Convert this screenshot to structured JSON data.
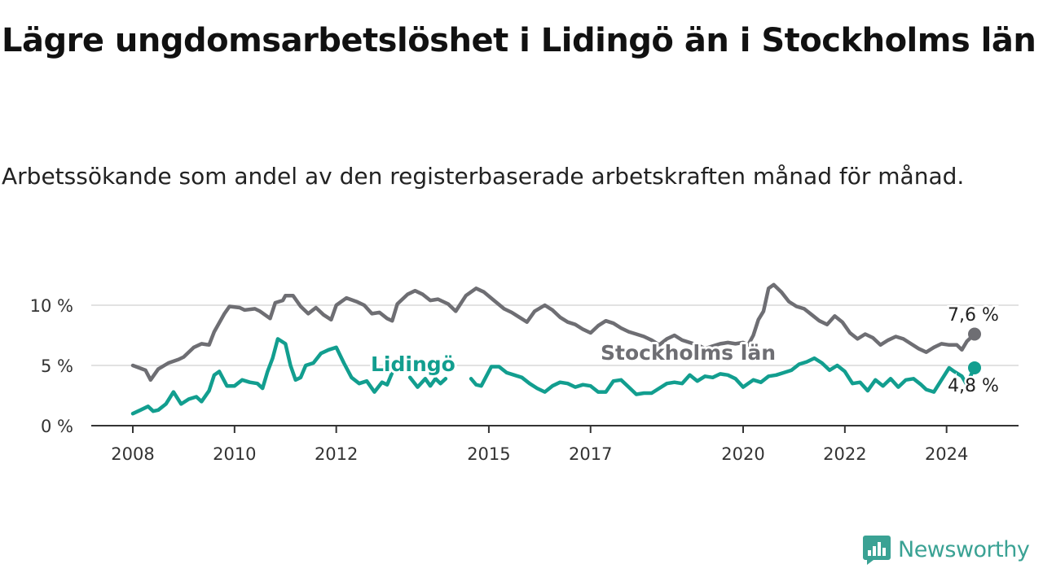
{
  "title": "Lägre ungdomsarbetslöshet i Lidingö än i Stockholms län",
  "subtitle": "Arbetssökande som andel av den registerbaserade arbetskraften månad för månad.",
  "brand": "Newsworthy",
  "colors": {
    "stockholm": "#6e6e73",
    "lidingo": "#129e8f",
    "grid": "#d9d9d9",
    "axis": "#333333",
    "brand": "#3aa294"
  },
  "chart_data": {
    "type": "line",
    "ylabel": "",
    "xlabel": "",
    "ylim": [
      0,
      12
    ],
    "xlim": [
      2008.0,
      2024.55
    ],
    "yticks": [
      {
        "value": 0,
        "label": "0 %"
      },
      {
        "value": 5,
        "label": "5 %"
      },
      {
        "value": 10,
        "label": "10 %"
      }
    ],
    "xticks": [
      {
        "value": 2008,
        "label": "2008"
      },
      {
        "value": 2010,
        "label": "2010"
      },
      {
        "value": 2012,
        "label": "2012"
      },
      {
        "value": 2015,
        "label": "2015"
      },
      {
        "value": 2017,
        "label": "2017"
      },
      {
        "value": 2020,
        "label": "2020"
      },
      {
        "value": 2022,
        "label": "2022"
      },
      {
        "value": 2024,
        "label": "2024"
      }
    ],
    "series": [
      {
        "name": "Stockholms län",
        "color": "#6e6e73",
        "end_label": "7,6 %",
        "points": [
          [
            2008.0,
            5.0
          ],
          [
            2008.25,
            4.6
          ],
          [
            2008.35,
            3.8
          ],
          [
            2008.5,
            4.7
          ],
          [
            2008.7,
            5.2
          ],
          [
            2008.9,
            5.5
          ],
          [
            2009.0,
            5.7
          ],
          [
            2009.2,
            6.5
          ],
          [
            2009.35,
            6.8
          ],
          [
            2009.5,
            6.7
          ],
          [
            2009.6,
            7.8
          ],
          [
            2009.8,
            9.3
          ],
          [
            2009.9,
            9.9
          ],
          [
            2010.1,
            9.8
          ],
          [
            2010.2,
            9.6
          ],
          [
            2010.4,
            9.7
          ],
          [
            2010.5,
            9.5
          ],
          [
            2010.7,
            8.9
          ],
          [
            2010.8,
            10.2
          ],
          [
            2010.95,
            10.4
          ],
          [
            2011.0,
            10.8
          ],
          [
            2011.15,
            10.8
          ],
          [
            2011.3,
            9.9
          ],
          [
            2011.45,
            9.3
          ],
          [
            2011.6,
            9.8
          ],
          [
            2011.75,
            9.2
          ],
          [
            2011.9,
            8.8
          ],
          [
            2012.0,
            10.0
          ],
          [
            2012.2,
            10.6
          ],
          [
            2012.4,
            10.3
          ],
          [
            2012.55,
            10.0
          ],
          [
            2012.7,
            9.3
          ],
          [
            2012.85,
            9.4
          ],
          [
            2013.0,
            8.9
          ],
          [
            2013.1,
            8.7
          ],
          [
            2013.2,
            10.1
          ],
          [
            2013.4,
            10.9
          ],
          [
            2013.55,
            11.2
          ],
          [
            2013.7,
            10.9
          ],
          [
            2013.85,
            10.4
          ],
          [
            2014.0,
            10.5
          ],
          [
            2014.2,
            10.1
          ],
          [
            2014.35,
            9.5
          ],
          [
            2014.55,
            10.8
          ],
          [
            2014.75,
            11.4
          ],
          [
            2014.9,
            11.1
          ],
          [
            2015.1,
            10.4
          ],
          [
            2015.3,
            9.7
          ],
          [
            2015.45,
            9.4
          ],
          [
            2015.6,
            9.0
          ],
          [
            2015.75,
            8.6
          ],
          [
            2015.9,
            9.5
          ],
          [
            2016.1,
            10.0
          ],
          [
            2016.25,
            9.6
          ],
          [
            2016.4,
            9.0
          ],
          [
            2016.55,
            8.6
          ],
          [
            2016.7,
            8.4
          ],
          [
            2016.85,
            8.0
          ],
          [
            2017.0,
            7.7
          ],
          [
            2017.15,
            8.3
          ],
          [
            2017.3,
            8.7
          ],
          [
            2017.45,
            8.5
          ],
          [
            2017.6,
            8.1
          ],
          [
            2017.75,
            7.8
          ],
          [
            2017.9,
            7.6
          ],
          [
            2018.05,
            7.4
          ],
          [
            2018.2,
            7.1
          ],
          [
            2018.35,
            6.7
          ],
          [
            2018.5,
            7.2
          ],
          [
            2018.65,
            7.5
          ],
          [
            2018.8,
            7.1
          ],
          [
            2018.95,
            6.9
          ],
          [
            2019.1,
            6.7
          ],
          [
            2019.25,
            6.4
          ],
          [
            2019.4,
            6.6
          ],
          [
            2019.55,
            6.8
          ],
          [
            2019.7,
            6.9
          ],
          [
            2019.85,
            6.8
          ],
          [
            2020.0,
            6.9
          ],
          [
            2020.1,
            6.7
          ],
          [
            2020.2,
            7.5
          ],
          [
            2020.3,
            8.8
          ],
          [
            2020.4,
            9.5
          ],
          [
            2020.5,
            11.4
          ],
          [
            2020.6,
            11.7
          ],
          [
            2020.75,
            11.1
          ],
          [
            2020.9,
            10.3
          ],
          [
            2021.05,
            9.9
          ],
          [
            2021.2,
            9.7
          ],
          [
            2021.35,
            9.2
          ],
          [
            2021.5,
            8.7
          ],
          [
            2021.65,
            8.4
          ],
          [
            2021.8,
            9.1
          ],
          [
            2021.95,
            8.6
          ],
          [
            2022.1,
            7.7
          ],
          [
            2022.25,
            7.2
          ],
          [
            2022.4,
            7.6
          ],
          [
            2022.55,
            7.3
          ],
          [
            2022.7,
            6.7
          ],
          [
            2022.85,
            7.1
          ],
          [
            2023.0,
            7.4
          ],
          [
            2023.15,
            7.2
          ],
          [
            2023.3,
            6.8
          ],
          [
            2023.45,
            6.4
          ],
          [
            2023.6,
            6.1
          ],
          [
            2023.75,
            6.5
          ],
          [
            2023.9,
            6.8
          ],
          [
            2024.05,
            6.7
          ],
          [
            2024.2,
            6.7
          ],
          [
            2024.3,
            6.3
          ],
          [
            2024.4,
            7.0
          ],
          [
            2024.55,
            7.6
          ]
        ]
      },
      {
        "name": "Lidingö",
        "color": "#129e8f",
        "end_label": "4,8 %",
        "points": [
          [
            2008.0,
            1.0
          ],
          [
            2008.15,
            1.3
          ],
          [
            2008.3,
            1.6
          ],
          [
            2008.4,
            1.2
          ],
          [
            2008.5,
            1.3
          ],
          [
            2008.65,
            1.8
          ],
          [
            2008.8,
            2.8
          ],
          [
            2008.95,
            1.8
          ],
          [
            2009.1,
            2.2
          ],
          [
            2009.25,
            2.4
          ],
          [
            2009.35,
            2.0
          ],
          [
            2009.5,
            2.9
          ],
          [
            2009.6,
            4.2
          ],
          [
            2009.7,
            4.5
          ],
          [
            2009.85,
            3.3
          ],
          [
            2010.0,
            3.3
          ],
          [
            2010.15,
            3.8
          ],
          [
            2010.3,
            3.6
          ],
          [
            2010.45,
            3.5
          ],
          [
            2010.55,
            3.1
          ],
          [
            2010.65,
            4.5
          ],
          [
            2010.75,
            5.6
          ],
          [
            2010.85,
            7.2
          ],
          [
            2011.0,
            6.8
          ],
          [
            2011.1,
            5.0
          ],
          [
            2011.2,
            3.8
          ],
          [
            2011.3,
            4.0
          ],
          [
            2011.4,
            5.0
          ],
          [
            2011.55,
            5.2
          ],
          [
            2011.7,
            6.0
          ],
          [
            2011.85,
            6.3
          ],
          [
            2012.0,
            6.5
          ],
          [
            2012.15,
            5.2
          ],
          [
            2012.3,
            4.0
          ],
          [
            2012.45,
            3.5
          ],
          [
            2012.6,
            3.7
          ],
          [
            2012.75,
            2.8
          ],
          [
            2012.9,
            3.6
          ],
          [
            2013.0,
            3.4
          ],
          [
            2013.1,
            4.4
          ],
          [
            2013.45,
            4.0
          ],
          [
            2013.6,
            3.2
          ],
          [
            2013.75,
            3.9
          ],
          [
            2013.85,
            3.3
          ],
          [
            2013.95,
            3.9
          ],
          [
            2014.05,
            3.5
          ],
          [
            2014.15,
            3.9
          ],
          [
            2014.65,
            3.9
          ],
          [
            2014.75,
            3.4
          ],
          [
            2014.85,
            3.3
          ],
          [
            2015.05,
            4.9
          ],
          [
            2015.2,
            4.9
          ],
          [
            2015.35,
            4.4
          ],
          [
            2015.5,
            4.2
          ],
          [
            2015.65,
            4.0
          ],
          [
            2015.8,
            3.5
          ],
          [
            2015.95,
            3.1
          ],
          [
            2016.1,
            2.8
          ],
          [
            2016.25,
            3.3
          ],
          [
            2016.4,
            3.6
          ],
          [
            2016.55,
            3.5
          ],
          [
            2016.7,
            3.2
          ],
          [
            2016.85,
            3.4
          ],
          [
            2017.0,
            3.3
          ],
          [
            2017.15,
            2.8
          ],
          [
            2017.3,
            2.8
          ],
          [
            2017.45,
            3.7
          ],
          [
            2017.6,
            3.8
          ],
          [
            2017.75,
            3.2
          ],
          [
            2017.9,
            2.6
          ],
          [
            2018.05,
            2.7
          ],
          [
            2018.2,
            2.7
          ],
          [
            2018.35,
            3.1
          ],
          [
            2018.5,
            3.5
          ],
          [
            2018.65,
            3.6
          ],
          [
            2018.8,
            3.5
          ],
          [
            2018.95,
            4.2
          ],
          [
            2019.1,
            3.7
          ],
          [
            2019.25,
            4.1
          ],
          [
            2019.4,
            4.0
          ],
          [
            2019.55,
            4.3
          ],
          [
            2019.7,
            4.2
          ],
          [
            2019.85,
            3.9
          ],
          [
            2020.0,
            3.2
          ],
          [
            2020.1,
            3.5
          ],
          [
            2020.2,
            3.8
          ],
          [
            2020.35,
            3.6
          ],
          [
            2020.5,
            4.1
          ],
          [
            2020.65,
            4.2
          ],
          [
            2020.8,
            4.4
          ],
          [
            2020.95,
            4.6
          ],
          [
            2021.1,
            5.1
          ],
          [
            2021.25,
            5.3
          ],
          [
            2021.4,
            5.6
          ],
          [
            2021.55,
            5.2
          ],
          [
            2021.7,
            4.6
          ],
          [
            2021.85,
            5.0
          ],
          [
            2022.0,
            4.5
          ],
          [
            2022.15,
            3.5
          ],
          [
            2022.3,
            3.6
          ],
          [
            2022.45,
            2.9
          ],
          [
            2022.6,
            3.8
          ],
          [
            2022.75,
            3.3
          ],
          [
            2022.9,
            3.9
          ],
          [
            2023.05,
            3.2
          ],
          [
            2023.2,
            3.8
          ],
          [
            2023.35,
            3.9
          ],
          [
            2023.5,
            3.4
          ],
          [
            2023.6,
            3.0
          ],
          [
            2023.75,
            2.8
          ],
          [
            2023.9,
            3.8
          ],
          [
            2024.05,
            4.8
          ],
          [
            2024.15,
            4.5
          ],
          [
            2024.3,
            4.1
          ],
          [
            2024.4,
            3.4
          ],
          [
            2024.5,
            4.4
          ],
          [
            2024.55,
            4.8
          ]
        ]
      }
    ]
  }
}
